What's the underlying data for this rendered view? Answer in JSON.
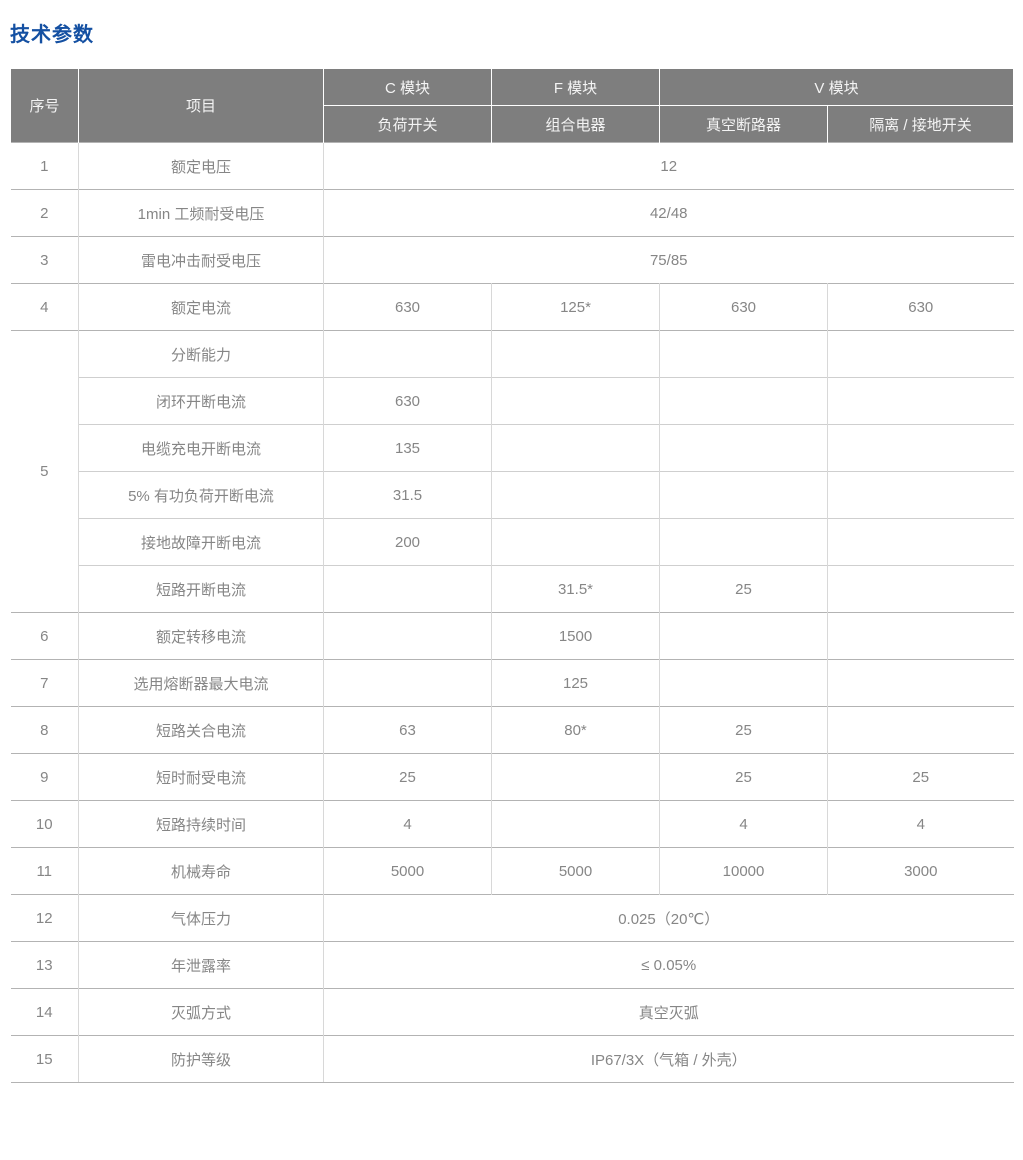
{
  "page": {
    "title": "技术参数"
  },
  "colors": {
    "title_blue": "#1450a2",
    "header_gray": "#7e7e7e",
    "header_text": "#f4f4f4",
    "body_text": "#868686"
  },
  "table": {
    "header": {
      "index_label": "序号",
      "item_label": "项目",
      "groups": [
        {
          "label": "C 模块",
          "cols": 1
        },
        {
          "label": "F 模块",
          "cols": 1
        },
        {
          "label": "V 模块",
          "cols": 2
        }
      ],
      "sub_labels": [
        "负荷开关",
        "组合电器",
        "真空断路器",
        "隔离 / 接地开关"
      ]
    },
    "rows": [
      {
        "no": "1",
        "item": "额定电压",
        "merged": "12"
      },
      {
        "no": "2",
        "item": "1min 工频耐受电压",
        "merged": "42/48"
      },
      {
        "no": "3",
        "item": "雷电冲击耐受电压",
        "merged": "75/85"
      },
      {
        "no": "4",
        "item": "额定电流",
        "values": [
          "630",
          "125*",
          "630",
          "630"
        ]
      },
      {
        "no": "5",
        "no_rowspan": 6,
        "item": "分断能力",
        "values": [
          "",
          "",
          "",
          ""
        ]
      },
      {
        "item": "闭环开断电流",
        "values": [
          "630",
          "",
          "",
          ""
        ],
        "sub": true
      },
      {
        "item": "电缆充电开断电流",
        "values": [
          "135",
          "",
          "",
          ""
        ],
        "sub": true
      },
      {
        "item": "5% 有功负荷开断电流",
        "values": [
          "31.5",
          "",
          "",
          ""
        ],
        "sub": true
      },
      {
        "item": "接地故障开断电流",
        "values": [
          "200",
          "",
          "",
          ""
        ],
        "sub": true
      },
      {
        "item": "短路开断电流",
        "values": [
          "",
          "31.5*",
          "25",
          ""
        ],
        "sub": true
      },
      {
        "no": "6",
        "item": "额定转移电流",
        "values": [
          "",
          "1500",
          "",
          ""
        ]
      },
      {
        "no": "7",
        "item": "选用熔断器最大电流",
        "values": [
          "",
          "125",
          "",
          ""
        ]
      },
      {
        "no": "8",
        "item": "短路关合电流",
        "values": [
          "63",
          "80*",
          "25",
          ""
        ]
      },
      {
        "no": "9",
        "item": "短时耐受电流",
        "values": [
          "25",
          "",
          "25",
          "25"
        ]
      },
      {
        "no": "10",
        "item": "短路持续时间",
        "values": [
          "4",
          "",
          "4",
          "4"
        ]
      },
      {
        "no": "11",
        "item": "机械寿命",
        "values": [
          "5000",
          "5000",
          "10000",
          "3000"
        ]
      },
      {
        "no": "12",
        "item": "气体压力",
        "merged": "0.025（20℃）"
      },
      {
        "no": "13",
        "item": "年泄露率",
        "merged": "≤ 0.05%"
      },
      {
        "no": "14",
        "item": "灭弧方式",
        "merged": "真空灭弧"
      },
      {
        "no": "15",
        "item": "防护等级",
        "merged": "IP67/3X（气箱 / 外壳）"
      }
    ]
  }
}
